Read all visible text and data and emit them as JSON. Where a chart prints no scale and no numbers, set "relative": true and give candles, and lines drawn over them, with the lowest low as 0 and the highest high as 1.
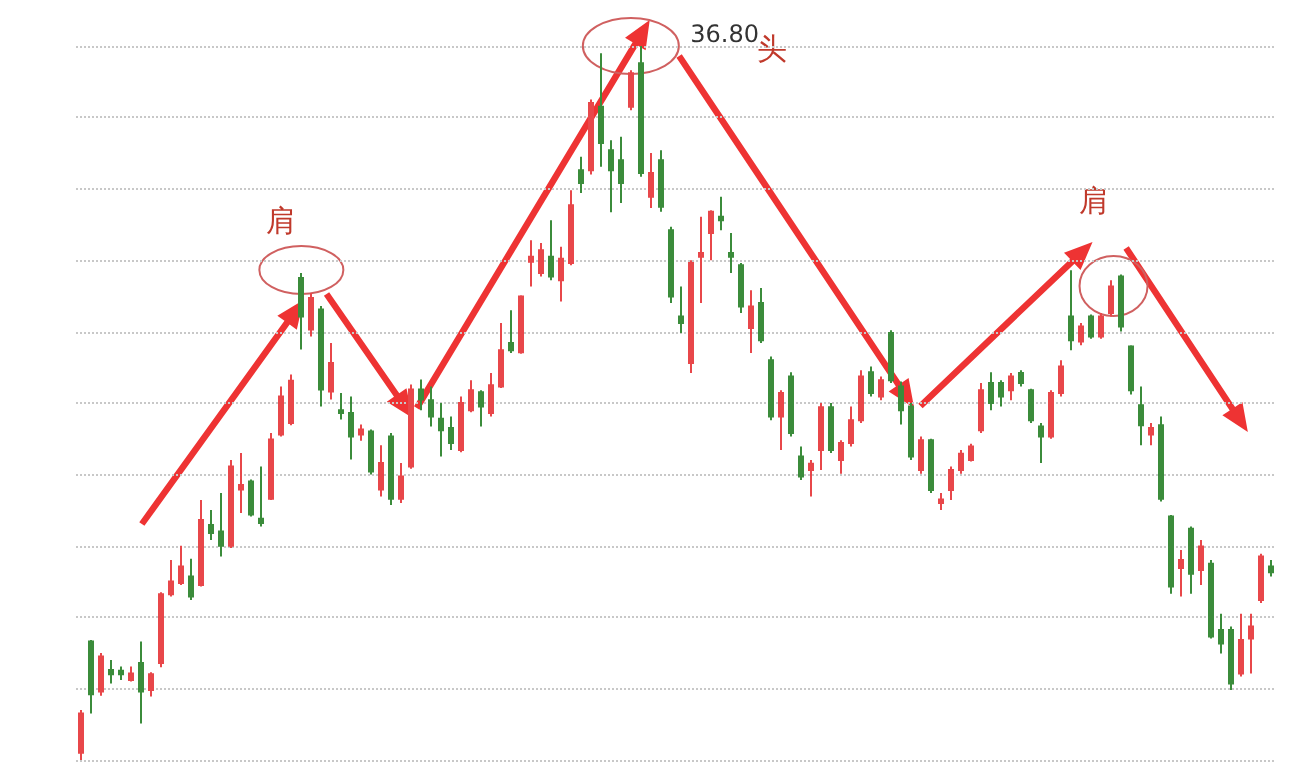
{
  "chart_data": {
    "type": "candlestick",
    "relative": true,
    "grid": "y",
    "annotations": [
      "肩",
      "36.80",
      "头",
      "肩"
    ],
    "categories": [
      null,
      null,
      null,
      null,
      null,
      null,
      null,
      null,
      null,
      null,
      null,
      null,
      null,
      null,
      null,
      null,
      null,
      null,
      null,
      null,
      null,
      null,
      null,
      null,
      null,
      null,
      null,
      null,
      null,
      null,
      null,
      null,
      null,
      null,
      null,
      null,
      null,
      null,
      null,
      null,
      null,
      null,
      null,
      null,
      null,
      null,
      null,
      null,
      null,
      null,
      null,
      null,
      null,
      null,
      null,
      null,
      null,
      null,
      null,
      null,
      null,
      null,
      null,
      null,
      null,
      null,
      null,
      null,
      null,
      null,
      null,
      null,
      null,
      null,
      null,
      null,
      null,
      null,
      null,
      null,
      null,
      null,
      null,
      null,
      null,
      null,
      null,
      null,
      null,
      null,
      null,
      null,
      null,
      null,
      null,
      null,
      null,
      null,
      null,
      null,
      null,
      null,
      null,
      null,
      null,
      null,
      null,
      null,
      null,
      null,
      null,
      null,
      null,
      null,
      null,
      null,
      null,
      null,
      null,
      null
    ],
    "ohlc": [
      [
        0.01,
        0.07,
        0,
        0.065
      ],
      [
        0.166,
        0.168,
        0.065,
        0.092
      ],
      [
        0.096,
        0.15,
        0.09,
        0.145
      ],
      [
        0.126,
        0.14,
        0.107,
        0.12
      ],
      [
        0.125,
        0.131,
        0.112,
        0.12
      ],
      [
        0.112,
        0.131,
        0.11,
        0.121
      ],
      [
        0.136,
        0.166,
        0.051,
        0.096
      ],
      [
        0.098,
        0.123,
        0.089,
        0.12
      ],
      [
        0.136,
        0.235,
        0.13,
        0.232
      ],
      [
        0.232,
        0.28,
        0.229,
        0.25
      ],
      [
        0.248,
        0.3,
        0.245,
        0.271
      ],
      [
        0.257,
        0.282,
        0.224,
        0.229
      ],
      [
        0.245,
        0.364,
        0.243,
        0.336
      ],
      [
        0.329,
        0.35,
        0.308,
        0.318
      ],
      [
        0.32,
        0.374,
        0.285,
        0.3
      ],
      [
        0.3,
        0.42,
        0.297,
        0.411
      ],
      [
        0.379,
        0.43,
        0.346,
        0.385
      ],
      [
        0.39,
        0.393,
        0.341,
        0.344
      ],
      [
        0.338,
        0.411,
        0.327,
        0.332
      ],
      [
        0.366,
        0.458,
        0.364,
        0.449
      ],
      [
        0.456,
        0.523,
        0.453,
        0.509
      ],
      [
        0.472,
        0.54,
        0.469,
        0.531
      ],
      [
        0.675,
        0.682,
        0.575,
        0.621
      ],
      [
        0.603,
        0.654,
        0.593,
        0.647
      ],
      [
        0.631,
        0.636,
        0.495,
        0.519
      ],
      [
        0.516,
        0.584,
        0.505,
        0.556
      ],
      [
        0.49,
        0.514,
        0.477,
        0.486
      ],
      [
        0.486,
        0.509,
        0.421,
        0.453
      ],
      [
        0.456,
        0.47,
        0.447,
        0.463
      ],
      [
        0.46,
        0.463,
        0.4,
        0.404
      ],
      [
        0.379,
        0.441,
        0.369,
        0.416
      ],
      [
        0.453,
        0.458,
        0.357,
        0.366
      ],
      [
        0.366,
        0.416,
        0.36,
        0.397
      ],
      [
        0.411,
        0.526,
        0.408,
        0.519
      ],
      [
        0.519,
        0.533,
        0.49,
        0.505
      ],
      [
        0.504,
        0.523,
        0.467,
        0.481
      ],
      [
        0.478,
        0.5,
        0.425,
        0.462
      ],
      [
        0.465,
        0.481,
        0.434,
        0.444
      ],
      [
        0.434,
        0.509,
        0.431,
        0.5
      ],
      [
        0.49,
        0.532,
        0.487,
        0.518
      ],
      [
        0.515,
        0.518,
        0.467,
        0.495
      ],
      [
        0.486,
        0.542,
        0.481,
        0.525
      ],
      [
        0.523,
        0.612,
        0.521,
        0.574
      ],
      [
        0.584,
        0.63,
        0.57,
        0.574
      ],
      [
        0.571,
        0.651,
        0.569,
        0.649
      ],
      [
        0.698,
        0.728,
        0.663,
        0.705
      ],
      [
        0.682,
        0.724,
        0.677,
        0.714
      ],
      [
        0.705,
        0.756,
        0.672,
        0.677
      ],
      [
        0.672,
        0.719,
        0.642,
        0.702
      ],
      [
        0.696,
        0.798,
        0.693,
        0.777
      ],
      [
        0.826,
        0.845,
        0.794,
        0.808
      ],
      [
        0.826,
        0.925,
        0.82,
        0.92
      ],
      [
        0.915,
        0.99,
        0.831,
        0.864
      ],
      [
        0.854,
        0.868,
        0.767,
        0.826
      ],
      [
        0.84,
        0.873,
        0.78,
        0.808
      ],
      [
        0.915,
        0.966,
        0.91,
        0.962
      ],
      [
        0.976,
        1,
        0.817,
        0.822
      ],
      [
        0.789,
        0.85,
        0.773,
        0.822
      ],
      [
        0.84,
        0.854,
        0.768,
        0.775
      ],
      [
        0.742,
        0.747,
        0.64,
        0.649
      ],
      [
        0.621,
        0.663,
        0.598,
        0.612
      ],
      [
        0.556,
        0.7,
        0.542,
        0.696
      ],
      [
        0.705,
        0.761,
        0.64,
        0.71
      ],
      [
        0.738,
        0.77,
        0.7,
        0.768
      ],
      [
        0.761,
        0.789,
        0.742,
        0.756
      ],
      [
        0.71,
        0.738,
        0.682,
        0.705
      ],
      [
        0.693,
        0.696,
        0.626,
        0.635
      ],
      [
        0.605,
        0.658,
        0.57,
        0.635
      ],
      [
        0.64,
        0.661,
        0.584,
        0.588
      ],
      [
        0.56,
        0.565,
        0.476,
        0.481
      ],
      [
        0.481,
        0.518,
        0.434,
        0.514
      ],
      [
        0.537,
        0.543,
        0.453,
        0.458
      ],
      [
        0.425,
        0.439,
        0.392,
        0.397
      ],
      [
        0.406,
        0.42,
        0.369,
        0.415
      ],
      [
        0.434,
        0.5,
        0.406,
        0.494
      ],
      [
        0.494,
        0.5,
        0.43,
        0.434
      ],
      [
        0.42,
        0.448,
        0.401,
        0.444
      ],
      [
        0.444,
        0.495,
        0.439,
        0.476
      ],
      [
        0.476,
        0.546,
        0.472,
        0.537
      ],
      [
        0.543,
        0.551,
        0.509,
        0.514
      ],
      [
        0.509,
        0.537,
        0.504,
        0.532
      ],
      [
        0.598,
        0.602,
        0.528,
        0.532
      ],
      [
        0.523,
        0.53,
        0.47,
        0.49
      ],
      [
        0.495,
        0.5,
        0.42,
        0.425
      ],
      [
        0.406,
        0.453,
        0.401,
        0.448
      ],
      [
        0.448,
        0.45,
        0.374,
        0.378
      ],
      [
        0.36,
        0.374,
        0.35,
        0.365
      ],
      [
        0.378,
        0.411,
        0.364,
        0.406
      ],
      [
        0.406,
        0.434,
        0.401,
        0.429
      ],
      [
        0.42,
        0.443,
        0.418,
        0.439
      ],
      [
        0.462,
        0.528,
        0.458,
        0.518
      ],
      [
        0.528,
        0.543,
        0.49,
        0.5
      ],
      [
        0.528,
        0.532,
        0.495,
        0.509
      ],
      [
        0.518,
        0.542,
        0.504,
        0.537
      ],
      [
        0.542,
        0.546,
        0.523,
        0.528
      ],
      [
        0.518,
        0.52,
        0.472,
        0.476
      ],
      [
        0.467,
        0.472,
        0.416,
        0.453
      ],
      [
        0.453,
        0.518,
        0.45,
        0.514
      ],
      [
        0.514,
        0.56,
        0.509,
        0.551
      ],
      [
        0.621,
        0.686,
        0.574,
        0.588
      ],
      [
        0.586,
        0.612,
        0.581,
        0.607
      ],
      [
        0.621,
        0.624,
        0.59,
        0.593
      ],
      [
        0.593,
        0.626,
        0.59,
        0.621
      ],
      [
        0.626,
        0.672,
        0.621,
        0.663
      ],
      [
        0.677,
        0.68,
        0.6,
        0.607
      ],
      [
        0.579,
        0.581,
        0.512,
        0.518
      ],
      [
        0.497,
        0.523,
        0.441,
        0.469
      ],
      [
        0.456,
        0.472,
        0.441,
        0.465
      ],
      [
        0.469,
        0.481,
        0.362,
        0.366
      ],
      [
        0.341,
        0.343,
        0.233,
        0.243
      ],
      [
        0.269,
        0.294,
        0.229,
        0.28
      ],
      [
        0.324,
        0.327,
        0.233,
        0.261
      ],
      [
        0.266,
        0.308,
        0.245,
        0.299
      ],
      [
        0.275,
        0.28,
        0.17,
        0.173
      ],
      [
        0.182,
        0.205,
        0.149,
        0.163
      ],
      [
        0.182,
        0.187,
        0.098,
        0.107
      ],
      [
        0.121,
        0.205,
        0.117,
        0.168
      ],
      [
        0.17,
        0.205,
        0.121,
        0.187
      ],
      [
        0.224,
        0.289,
        0.22,
        0.285
      ],
      [
        0.271,
        0.28,
        0.257,
        0.263
      ]
    ],
    "colors": [
      "#e8474a",
      "#3b8c3b",
      "#e8474a",
      "#3b8c3b",
      "#3b8c3b",
      "#e8474a",
      "#3b8c3b",
      "#e8474a",
      "#e8474a",
      "#e8474a",
      "#e8474a",
      "#3b8c3b",
      "#e8474a",
      "#3b8c3b",
      "#3b8c3b",
      "#e8474a",
      "#e8474a",
      "#3b8c3b",
      "#3b8c3b",
      "#e8474a",
      "#e8474a",
      "#e8474a",
      "#3b8c3b",
      "#e8474a",
      "#3b8c3b",
      "#e8474a",
      "#3b8c3b",
      "#3b8c3b",
      "#e8474a",
      "#3b8c3b",
      "#e8474a",
      "#3b8c3b",
      "#e8474a",
      "#e8474a",
      "#3b8c3b",
      "#3b8c3b",
      "#3b8c3b",
      "#3b8c3b",
      "#e8474a",
      "#e8474a",
      "#3b8c3b",
      "#e8474a",
      "#e8474a",
      "#3b8c3b",
      "#e8474a",
      "#e8474a",
      "#e8474a",
      "#3b8c3b",
      "#e8474a",
      "#e8474a",
      "#3b8c3b",
      "#e8474a",
      "#3b8c3b",
      "#3b8c3b",
      "#3b8c3b",
      "#e8474a",
      "#3b8c3b",
      "#e8474a",
      "#3b8c3b",
      "#3b8c3b",
      "#3b8c3b",
      "#e8474a",
      "#e8474a",
      "#e8474a",
      "#3b8c3b",
      "#3b8c3b",
      "#3b8c3b",
      "#e8474a",
      "#3b8c3b",
      "#3b8c3b",
      "#e8474a",
      "#3b8c3b",
      "#3b8c3b",
      "#e8474a",
      "#e8474a",
      "#3b8c3b",
      "#e8474a",
      "#e8474a",
      "#e8474a",
      "#3b8c3b",
      "#e8474a",
      "#3b8c3b",
      "#3b8c3b",
      "#3b8c3b",
      "#e8474a",
      "#3b8c3b",
      "#e8474a",
      "#e8474a",
      "#e8474a",
      "#e8474a",
      "#e8474a",
      "#3b8c3b",
      "#3b8c3b",
      "#e8474a",
      "#3b8c3b",
      "#3b8c3b",
      "#3b8c3b",
      "#e8474a",
      "#e8474a",
      "#3b8c3b",
      "#e8474a",
      "#3b8c3b",
      "#e8474a",
      "#e8474a",
      "#3b8c3b",
      "#3b8c3b",
      "#3b8c3b",
      "#e8474a",
      "#3b8c3b",
      "#3b8c3b",
      "#e8474a",
      "#3b8c3b",
      "#e8474a",
      "#3b8c3b",
      "#3b8c3b",
      "#3b8c3b",
      "#e8474a",
      "#e8474a",
      "#e8474a",
      "#3b8c3b"
    ]
  }
}
